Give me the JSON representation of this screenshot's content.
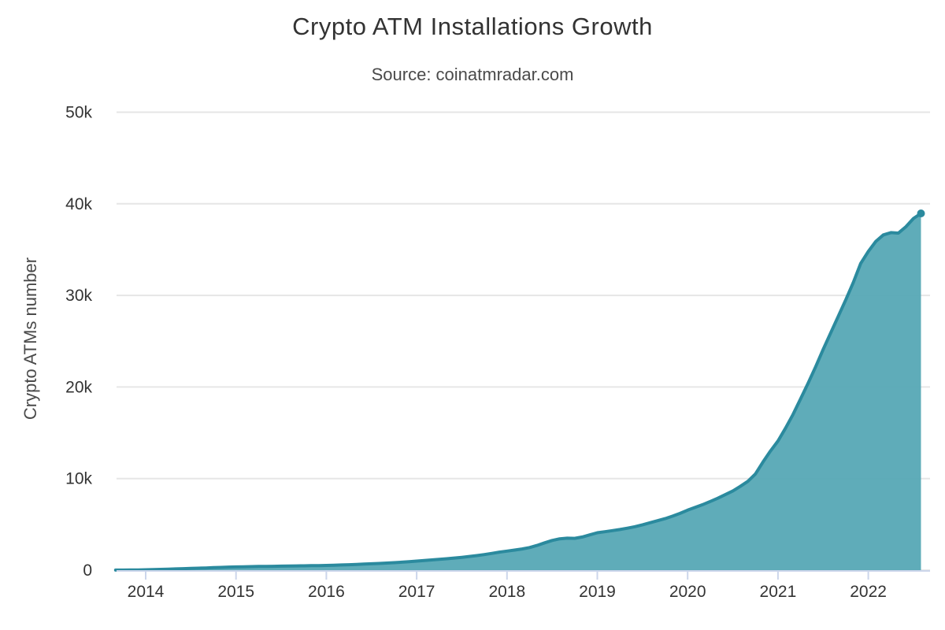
{
  "chart_data": {
    "type": "area",
    "title": "Crypto ATM Installations Growth",
    "subtitle": "Source: coinatmradar.com",
    "xlabel": "",
    "ylabel": "Crypto ATMs number",
    "ylim": [
      0,
      50000
    ],
    "grid": true,
    "legend": false,
    "y_ticks": [
      {
        "value": 0,
        "label": "0"
      },
      {
        "value": 10000,
        "label": "10k"
      },
      {
        "value": 20000,
        "label": "20k"
      },
      {
        "value": 30000,
        "label": "30k"
      },
      {
        "value": 40000,
        "label": "40k"
      },
      {
        "value": 50000,
        "label": "50k"
      }
    ],
    "x_ticks": [
      2014,
      2015,
      2016,
      2017,
      2018,
      2019,
      2020,
      2021,
      2022
    ],
    "colors": {
      "area_fill": "#58A9B6",
      "line": "#2B8A9E",
      "gridline": "#E6E6E6",
      "axis": "#CCD6EB",
      "title_text": "#333333",
      "subtitle_text": "#4A4A4A",
      "label_text": "#333333",
      "axis_title_text": "#4A4A4A"
    },
    "series": [
      {
        "name": "Crypto ATMs number",
        "interval": "monthly",
        "start_year": 2013,
        "start_month": 9,
        "values": [
          5,
          12,
          20,
          30,
          45,
          62,
          85,
          110,
          135,
          160,
          185,
          215,
          245,
          275,
          305,
          335,
          355,
          370,
          385,
          400,
          412,
          425,
          438,
          450,
          462,
          474,
          488,
          502,
          520,
          542,
          566,
          594,
          624,
          658,
          694,
          732,
          774,
          820,
          872,
          930,
          990,
          1050,
          1115,
          1180,
          1250,
          1325,
          1405,
          1495,
          1590,
          1700,
          1830,
          1965,
          2080,
          2190,
          2310,
          2470,
          2700,
          2980,
          3240,
          3420,
          3490,
          3470,
          3620,
          3850,
          4080,
          4200,
          4320,
          4440,
          4580,
          4750,
          4950,
          5180,
          5400,
          5620,
          5900,
          6200,
          6550,
          6850,
          7150,
          7500,
          7850,
          8250,
          8650,
          9150,
          9700,
          10500,
          11800,
          13000,
          14100,
          15500,
          17000,
          18700,
          20400,
          22200,
          24100,
          25900,
          27700,
          29500,
          31400,
          33500,
          34800,
          35900,
          36600,
          36850,
          36800,
          37500,
          38400,
          38950
        ]
      }
    ]
  }
}
